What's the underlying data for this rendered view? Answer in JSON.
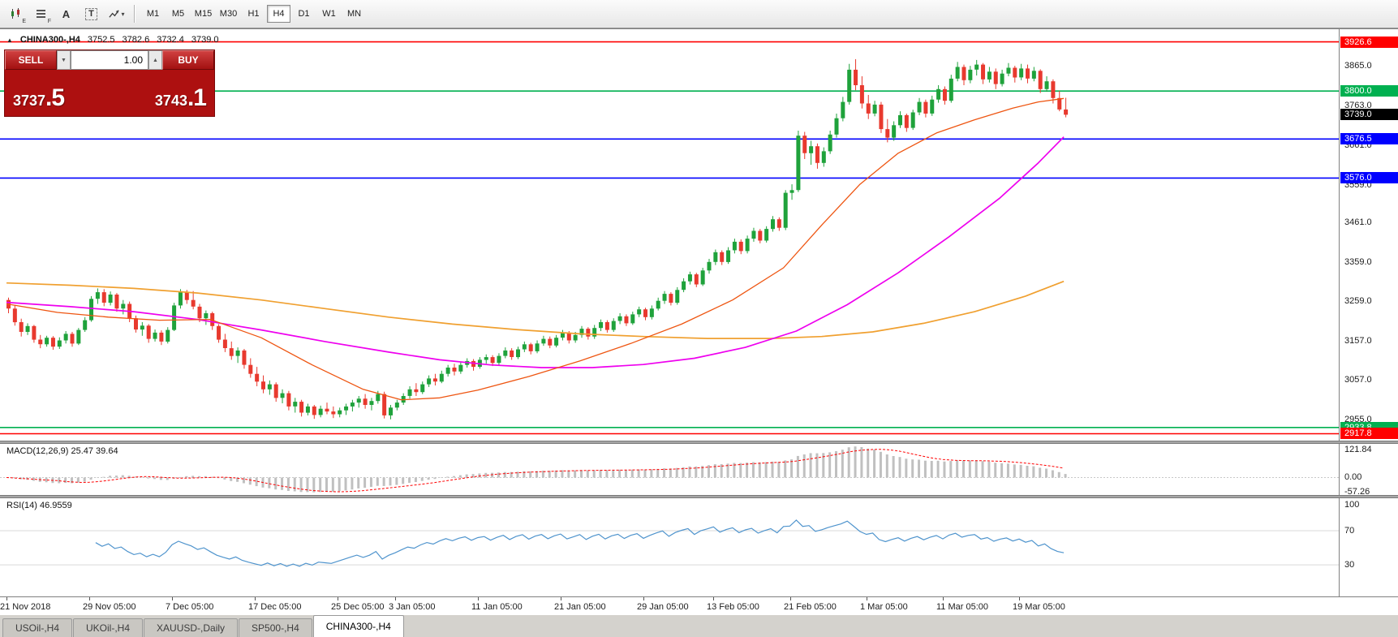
{
  "toolbar": {
    "icons": [
      {
        "name": "candlestick-chart-icon",
        "sub": "E"
      },
      {
        "name": "bar-chart-icon",
        "sub": "F"
      },
      {
        "name": "font-icon",
        "glyph": "A"
      },
      {
        "name": "text-label-icon",
        "glyph": "T"
      },
      {
        "name": "quick-trade-icon",
        "glyph": "▾"
      }
    ],
    "timeframes": [
      "M1",
      "M5",
      "M15",
      "M30",
      "H1",
      "H4",
      "D1",
      "W1",
      "MN"
    ],
    "active_timeframe": "H4"
  },
  "symbol_header": {
    "collapse_glyph": "▲",
    "symbol": "CHINA300-,H4",
    "open": "3752.5",
    "high": "3782.6",
    "low": "3732.4",
    "close": "3739.0"
  },
  "trade_panel": {
    "sell_label": "SELL",
    "buy_label": "BUY",
    "volume": "1.00",
    "down_glyph": "▼",
    "up_glyph": "▲",
    "sell_price_int": "3737",
    "sell_price_dec": ".5",
    "buy_price_int": "3743",
    "buy_price_dec": ".1"
  },
  "macd_panel": {
    "label": "MACD(12,26,9) 25.47 39.64",
    "axis": [
      "121.84",
      "0.00",
      "-57.26"
    ]
  },
  "rsi_panel": {
    "label": "RSI(14) 46.9559",
    "axis": [
      "100",
      "70",
      "30"
    ]
  },
  "date_axis": {
    "labels": [
      {
        "i": 0,
        "text": "21 Nov 2018"
      },
      {
        "i": 13,
        "text": "29 Nov 05:00"
      },
      {
        "i": 26,
        "text": "7 Dec 05:00"
      },
      {
        "i": 39,
        "text": "17 Dec 05:00"
      },
      {
        "i": 52,
        "text": "25 Dec 05:00"
      },
      {
        "i": 61,
        "text": "3 Jan 05:00"
      },
      {
        "i": 74,
        "text": "11 Jan 05:00"
      },
      {
        "i": 87,
        "text": "21 Jan 05:00"
      },
      {
        "i": 100,
        "text": "29 Jan 05:00"
      },
      {
        "i": 111,
        "text": "13 Feb 05:00"
      },
      {
        "i": 123,
        "text": "21 Feb 05:00"
      },
      {
        "i": 135,
        "text": "1 Mar 05:00"
      },
      {
        "i": 147,
        "text": "11 Mar 05:00"
      },
      {
        "i": 159,
        "text": "19 Mar 05:00"
      }
    ]
  },
  "bottom_tabs": {
    "tabs": [
      "USOil-,H4",
      "UKOil-,H4",
      "XAUUSD-,Daily",
      "SP500-,H4",
      "CHINA300-,H4"
    ],
    "active": "CHINA300-,H4"
  },
  "chart_data": {
    "type": "candlestick",
    "symbol": "CHINA300-",
    "timeframe": "H4",
    "current_ohlc": {
      "open": 3752.5,
      "high": 3782.6,
      "low": 3732.4,
      "close": 3739.0
    },
    "axis_range": {
      "top": 3955,
      "bottom": 2900
    },
    "y_ticks": [
      "3865.0",
      "3763.0",
      "3661.0",
      "3559.0",
      "3461.0",
      "3359.0",
      "3259.0",
      "3157.0",
      "3057.0",
      "2955.0"
    ],
    "levels": [
      {
        "label": "3926.6",
        "price": 3926.6,
        "color": "#ff0000",
        "line": true
      },
      {
        "label": "3800.0",
        "price": 3800.0,
        "color": "#00b050",
        "line": true
      },
      {
        "label": "3739.0",
        "price": 3739.0,
        "color": "#000000",
        "line": false
      },
      {
        "label": "3676.5",
        "price": 3676.5,
        "color": "#0000ff",
        "line": true
      },
      {
        "label": "3576.0",
        "price": 3576.0,
        "color": "#0000ff",
        "line": true
      },
      {
        "label": "2933.8",
        "price": 2933.8,
        "color": "#00b050",
        "line": true
      },
      {
        "label": "2917.8",
        "price": 2917.8,
        "color": "#ff0000",
        "line": true
      }
    ],
    "colors": {
      "up": "#1fa23b",
      "down": "#e8392e",
      "ma_orange": "#f0a030",
      "ma_magenta": "#ee00ee",
      "ma_fast": "#ee5511",
      "macd_histogram": "#c0c0c0",
      "macd_signal": "#ff0000",
      "rsi": "#4f94cd"
    },
    "candles": [
      [
        3262,
        3268,
        3228,
        3240
      ],
      [
        3240,
        3248,
        3196,
        3205
      ],
      [
        3205,
        3214,
        3168,
        3180
      ],
      [
        3180,
        3202,
        3172,
        3195
      ],
      [
        3195,
        3198,
        3152,
        3160
      ],
      [
        3160,
        3172,
        3138,
        3148
      ],
      [
        3148,
        3170,
        3142,
        3165
      ],
      [
        3165,
        3169,
        3134,
        3142
      ],
      [
        3142,
        3166,
        3136,
        3158
      ],
      [
        3158,
        3182,
        3150,
        3175
      ],
      [
        3175,
        3180,
        3142,
        3150
      ],
      [
        3150,
        3190,
        3146,
        3185
      ],
      [
        3185,
        3218,
        3180,
        3210
      ],
      [
        3210,
        3272,
        3206,
        3265
      ],
      [
        3265,
        3292,
        3252,
        3282
      ],
      [
        3282,
        3290,
        3246,
        3255
      ],
      [
        3255,
        3284,
        3248,
        3276
      ],
      [
        3276,
        3280,
        3232,
        3240
      ],
      [
        3240,
        3262,
        3225,
        3252
      ],
      [
        3252,
        3258,
        3205,
        3215
      ],
      [
        3215,
        3222,
        3178,
        3186
      ],
      [
        3186,
        3205,
        3170,
        3196
      ],
      [
        3196,
        3200,
        3152,
        3162
      ],
      [
        3162,
        3186,
        3155,
        3178
      ],
      [
        3178,
        3184,
        3146,
        3155
      ],
      [
        3155,
        3192,
        3150,
        3185
      ],
      [
        3185,
        3255,
        3182,
        3248
      ],
      [
        3248,
        3290,
        3240,
        3282
      ],
      [
        3282,
        3288,
        3252,
        3262
      ],
      [
        3262,
        3285,
        3238,
        3245
      ],
      [
        3245,
        3252,
        3205,
        3215
      ],
      [
        3215,
        3235,
        3198,
        3228
      ],
      [
        3228,
        3232,
        3185,
        3195
      ],
      [
        3195,
        3200,
        3152,
        3160
      ],
      [
        3160,
        3175,
        3128,
        3138
      ],
      [
        3138,
        3155,
        3108,
        3118
      ],
      [
        3118,
        3140,
        3100,
        3132
      ],
      [
        3132,
        3136,
        3085,
        3095
      ],
      [
        3095,
        3112,
        3062,
        3072
      ],
      [
        3072,
        3090,
        3040,
        3052
      ],
      [
        3052,
        3068,
        3022,
        3032
      ],
      [
        3032,
        3055,
        3018,
        3045
      ],
      [
        3045,
        3050,
        3000,
        3010
      ],
      [
        3010,
        3032,
        2996,
        3022
      ],
      [
        3022,
        3028,
        2978,
        2988
      ],
      [
        2988,
        3010,
        2972,
        3000
      ],
      [
        3000,
        3005,
        2962,
        2972
      ],
      [
        2972,
        2995,
        2965,
        2988
      ],
      [
        2988,
        2992,
        2956,
        2966
      ],
      [
        2966,
        2990,
        2960,
        2982
      ],
      [
        2982,
        2998,
        2968,
        2975
      ],
      [
        2975,
        2988,
        2958,
        2968
      ],
      [
        2968,
        2985,
        2960,
        2978
      ],
      [
        2978,
        2995,
        2966,
        2988
      ],
      [
        2988,
        3005,
        2975,
        2998
      ],
      [
        2998,
        3015,
        2985,
        3008
      ],
      [
        3008,
        3020,
        2982,
        2992
      ],
      [
        2992,
        3010,
        2978,
        3002
      ],
      [
        3002,
        3028,
        2995,
        3020
      ],
      [
        3020,
        3026,
        2957,
        2965
      ],
      [
        2965,
        2992,
        2955,
        2985
      ],
      [
        2985,
        3005,
        2978,
        2998
      ],
      [
        2998,
        3022,
        2992,
        3015
      ],
      [
        3015,
        3040,
        3008,
        3032
      ],
      [
        3032,
        3048,
        3015,
        3025
      ],
      [
        3025,
        3052,
        3020,
        3045
      ],
      [
        3045,
        3068,
        3038,
        3060
      ],
      [
        3060,
        3072,
        3042,
        3052
      ],
      [
        3052,
        3080,
        3048,
        3072
      ],
      [
        3072,
        3095,
        3065,
        3088
      ],
      [
        3088,
        3098,
        3068,
        3078
      ],
      [
        3078,
        3102,
        3072,
        3095
      ],
      [
        3095,
        3112,
        3088,
        3105
      ],
      [
        3105,
        3110,
        3080,
        3090
      ],
      [
        3090,
        3115,
        3085,
        3108
      ],
      [
        3108,
        3122,
        3098,
        3115
      ],
      [
        3115,
        3120,
        3092,
        3100
      ],
      [
        3100,
        3125,
        3095,
        3118
      ],
      [
        3118,
        3140,
        3112,
        3132
      ],
      [
        3132,
        3138,
        3108,
        3115
      ],
      [
        3115,
        3142,
        3110,
        3135
      ],
      [
        3135,
        3155,
        3128,
        3148
      ],
      [
        3148,
        3152,
        3122,
        3130
      ],
      [
        3130,
        3158,
        3125,
        3150
      ],
      [
        3150,
        3170,
        3144,
        3162
      ],
      [
        3162,
        3168,
        3138,
        3145
      ],
      [
        3145,
        3172,
        3140,
        3165
      ],
      [
        3165,
        3185,
        3158,
        3178
      ],
      [
        3178,
        3182,
        3150,
        3158
      ],
      [
        3158,
        3180,
        3152,
        3172
      ],
      [
        3172,
        3195,
        3165,
        3188
      ],
      [
        3188,
        3192,
        3160,
        3168
      ],
      [
        3168,
        3198,
        3162,
        3190
      ],
      [
        3190,
        3212,
        3182,
        3205
      ],
      [
        3205,
        3210,
        3178,
        3185
      ],
      [
        3185,
        3215,
        3180,
        3208
      ],
      [
        3208,
        3228,
        3200,
        3220
      ],
      [
        3220,
        3225,
        3195,
        3202
      ],
      [
        3202,
        3232,
        3198,
        3225
      ],
      [
        3225,
        3245,
        3218,
        3238
      ],
      [
        3238,
        3242,
        3210,
        3218
      ],
      [
        3218,
        3248,
        3212,
        3240
      ],
      [
        3240,
        3268,
        3235,
        3260
      ],
      [
        3260,
        3285,
        3252,
        3278
      ],
      [
        3278,
        3282,
        3248,
        3255
      ],
      [
        3255,
        3295,
        3250,
        3288
      ],
      [
        3288,
        3318,
        3282,
        3310
      ],
      [
        3310,
        3335,
        3302,
        3328
      ],
      [
        3328,
        3332,
        3295,
        3302
      ],
      [
        3302,
        3345,
        3298,
        3338
      ],
      [
        3338,
        3368,
        3330,
        3360
      ],
      [
        3360,
        3392,
        3352,
        3385
      ],
      [
        3385,
        3390,
        3352,
        3360
      ],
      [
        3360,
        3398,
        3355,
        3390
      ],
      [
        3390,
        3420,
        3382,
        3412
      ],
      [
        3412,
        3418,
        3380,
        3388
      ],
      [
        3388,
        3428,
        3382,
        3420
      ],
      [
        3420,
        3448,
        3412,
        3440
      ],
      [
        3440,
        3445,
        3408,
        3415
      ],
      [
        3415,
        3452,
        3410,
        3445
      ],
      [
        3445,
        3478,
        3438,
        3470
      ],
      [
        3470,
        3475,
        3440,
        3448
      ],
      [
        3448,
        3545,
        3442,
        3538
      ],
      [
        3538,
        3560,
        3520,
        3545
      ],
      [
        3545,
        3698,
        3540,
        3685
      ],
      [
        3685,
        3695,
        3625,
        3640
      ],
      [
        3640,
        3672,
        3610,
        3658
      ],
      [
        3658,
        3665,
        3600,
        3615
      ],
      [
        3615,
        3655,
        3605,
        3645
      ],
      [
        3645,
        3698,
        3638,
        3688
      ],
      [
        3688,
        3742,
        3680,
        3730
      ],
      [
        3730,
        3785,
        3722,
        3772
      ],
      [
        3772,
        3870,
        3765,
        3855
      ],
      [
        3855,
        3882,
        3802,
        3815
      ],
      [
        3815,
        3838,
        3755,
        3768
      ],
      [
        3768,
        3790,
        3728,
        3742
      ],
      [
        3742,
        3775,
        3735,
        3765
      ],
      [
        3765,
        3772,
        3692,
        3702
      ],
      [
        3702,
        3728,
        3668,
        3680
      ],
      [
        3680,
        3722,
        3672,
        3712
      ],
      [
        3712,
        3748,
        3705,
        3738
      ],
      [
        3738,
        3742,
        3695,
        3705
      ],
      [
        3705,
        3752,
        3700,
        3745
      ],
      [
        3745,
        3782,
        3738,
        3772
      ],
      [
        3772,
        3778,
        3732,
        3742
      ],
      [
        3742,
        3788,
        3736,
        3778
      ],
      [
        3778,
        3815,
        3770,
        3805
      ],
      [
        3805,
        3812,
        3765,
        3775
      ],
      [
        3775,
        3842,
        3770,
        3832
      ],
      [
        3832,
        3875,
        3825,
        3862
      ],
      [
        3862,
        3868,
        3815,
        3828
      ],
      [
        3828,
        3865,
        3820,
        3855
      ],
      [
        3855,
        3880,
        3840,
        3868
      ],
      [
        3868,
        3872,
        3818,
        3830
      ],
      [
        3830,
        3862,
        3822,
        3850
      ],
      [
        3850,
        3858,
        3805,
        3818
      ],
      [
        3818,
        3855,
        3812,
        3845
      ],
      [
        3845,
        3872,
        3838,
        3860
      ],
      [
        3860,
        3865,
        3822,
        3835
      ],
      [
        3835,
        3870,
        3828,
        3858
      ],
      [
        3858,
        3868,
        3820,
        3832
      ],
      [
        3832,
        3862,
        3825,
        3852
      ],
      [
        3852,
        3856,
        3795,
        3805
      ],
      [
        3805,
        3838,
        3798,
        3825
      ],
      [
        3825,
        3830,
        3768,
        3782
      ],
      [
        3782,
        3800,
        3748,
        3752.5
      ],
      [
        3752.5,
        3782.6,
        3732.4,
        3739
      ]
    ],
    "ma_orange": [
      [
        0,
        3306
      ],
      [
        10,
        3300
      ],
      [
        20,
        3292
      ],
      [
        30,
        3280
      ],
      [
        40,
        3262
      ],
      [
        50,
        3240
      ],
      [
        60,
        3218
      ],
      [
        70,
        3200
      ],
      [
        80,
        3186
      ],
      [
        90,
        3175
      ],
      [
        100,
        3168
      ],
      [
        110,
        3163
      ],
      [
        120,
        3163
      ],
      [
        128,
        3168
      ],
      [
        136,
        3180
      ],
      [
        144,
        3202
      ],
      [
        152,
        3232
      ],
      [
        160,
        3272
      ],
      [
        166,
        3310
      ]
    ],
    "ma_magenta": [
      [
        0,
        3256
      ],
      [
        10,
        3245
      ],
      [
        20,
        3232
      ],
      [
        30,
        3212
      ],
      [
        40,
        3185
      ],
      [
        50,
        3155
      ],
      [
        60,
        3128
      ],
      [
        68,
        3108
      ],
      [
        76,
        3095
      ],
      [
        84,
        3088
      ],
      [
        92,
        3088
      ],
      [
        100,
        3096
      ],
      [
        108,
        3112
      ],
      [
        116,
        3140
      ],
      [
        124,
        3182
      ],
      [
        132,
        3250
      ],
      [
        140,
        3332
      ],
      [
        148,
        3425
      ],
      [
        156,
        3525
      ],
      [
        162,
        3615
      ],
      [
        166,
        3682
      ]
    ],
    "ma_fast": [
      [
        0,
        3252
      ],
      [
        8,
        3230
      ],
      [
        16,
        3218
      ],
      [
        24,
        3210
      ],
      [
        32,
        3212
      ],
      [
        40,
        3165
      ],
      [
        48,
        3095
      ],
      [
        56,
        3032
      ],
      [
        62,
        3005
      ],
      [
        68,
        3010
      ],
      [
        74,
        3030
      ],
      [
        82,
        3065
      ],
      [
        90,
        3105
      ],
      [
        98,
        3150
      ],
      [
        106,
        3200
      ],
      [
        114,
        3262
      ],
      [
        122,
        3345
      ],
      [
        128,
        3455
      ],
      [
        134,
        3560
      ],
      [
        140,
        3640
      ],
      [
        146,
        3692
      ],
      [
        152,
        3726
      ],
      [
        158,
        3756
      ],
      [
        162,
        3772
      ],
      [
        166,
        3781
      ]
    ],
    "macd": {
      "fast": 12,
      "slow": 26,
      "signal": 9,
      "value": 25.47,
      "signal_value": 39.64,
      "axis_range": [
        -70,
        135
      ]
    },
    "rsi": {
      "period": 14,
      "value": 46.9559,
      "levels": [
        70,
        30
      ],
      "axis_range": [
        0,
        100
      ]
    }
  }
}
